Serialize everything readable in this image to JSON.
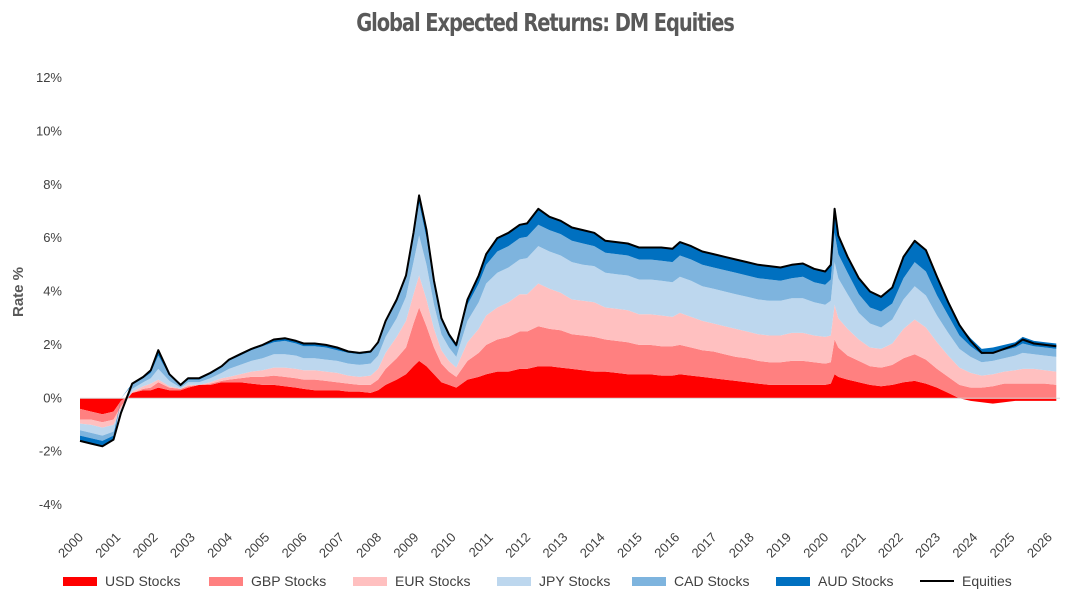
{
  "chart_data": {
    "type": "area",
    "title": "Global Expected Returns: DM Equities",
    "ylabel": "Rate %",
    "xlabel": "",
    "ylim": [
      -4,
      12
    ],
    "yticks": [
      -4,
      -2,
      0,
      2,
      4,
      6,
      8,
      10,
      12
    ],
    "ytick_labels": [
      "-4%",
      "-2%",
      "0%",
      "2%",
      "4%",
      "6%",
      "8%",
      "10%",
      "12%"
    ],
    "xlim": [
      2000,
      2026.3
    ],
    "xticks": [
      2000,
      2001,
      2002,
      2003,
      2004,
      2005,
      2006,
      2007,
      2008,
      2009,
      2010,
      2011,
      2012,
      2013,
      2014,
      2015,
      2016,
      2017,
      2018,
      2019,
      2020,
      2021,
      2022,
      2023,
      2024,
      2025,
      2026
    ],
    "xtick_labels": [
      "2000",
      "2001",
      "2002",
      "2003",
      "2004",
      "2005",
      "2006",
      "2007",
      "2008",
      "2009",
      "2010",
      "2011",
      "2012",
      "2013",
      "2014",
      "2015",
      "2016",
      "2017",
      "2018",
      "2019",
      "2020",
      "2021",
      "2022",
      "2023",
      "2024",
      "2025",
      "2026"
    ],
    "grid": false,
    "legend_position": "bottom",
    "x": [
      2000.0,
      2000.3,
      2000.6,
      2000.9,
      2001.1,
      2001.4,
      2001.7,
      2001.9,
      2002.1,
      2002.4,
      2002.7,
      2002.9,
      2003.2,
      2003.5,
      2003.8,
      2004.0,
      2004.3,
      2004.6,
      2004.9,
      2005.2,
      2005.5,
      2005.8,
      2006.0,
      2006.3,
      2006.6,
      2006.9,
      2007.2,
      2007.5,
      2007.8,
      2008.0,
      2008.2,
      2008.5,
      2008.75,
      2008.95,
      2009.1,
      2009.3,
      2009.5,
      2009.7,
      2009.9,
      2010.1,
      2010.4,
      2010.7,
      2010.9,
      2011.2,
      2011.5,
      2011.8,
      2012.0,
      2012.3,
      2012.6,
      2012.9,
      2013.2,
      2013.5,
      2013.8,
      2014.1,
      2014.4,
      2014.7,
      2015.0,
      2015.3,
      2015.6,
      2015.9,
      2016.1,
      2016.4,
      2016.7,
      2017.0,
      2017.3,
      2017.6,
      2017.9,
      2018.2,
      2018.5,
      2018.8,
      2019.1,
      2019.4,
      2019.7,
      2020.0,
      2020.15,
      2020.25,
      2020.35,
      2020.6,
      2020.9,
      2021.2,
      2021.5,
      2021.8,
      2022.1,
      2022.4,
      2022.7,
      2023.0,
      2023.3,
      2023.6,
      2023.9,
      2024.2,
      2024.5,
      2024.8,
      2025.1,
      2025.3,
      2025.6,
      2025.9,
      2026.2
    ],
    "series": [
      {
        "name": "USD Stocks",
        "color": "#ff0000",
        "values": [
          -0.4,
          -0.5,
          -0.6,
          -0.5,
          -0.1,
          0.2,
          0.3,
          0.3,
          0.4,
          0.3,
          0.3,
          0.4,
          0.5,
          0.5,
          0.6,
          0.6,
          0.6,
          0.55,
          0.5,
          0.5,
          0.45,
          0.4,
          0.35,
          0.3,
          0.3,
          0.3,
          0.25,
          0.25,
          0.2,
          0.3,
          0.5,
          0.7,
          0.9,
          1.2,
          1.4,
          1.2,
          0.9,
          0.6,
          0.5,
          0.4,
          0.7,
          0.8,
          0.9,
          1.0,
          1.0,
          1.1,
          1.1,
          1.2,
          1.2,
          1.15,
          1.1,
          1.05,
          1.0,
          1.0,
          0.95,
          0.9,
          0.9,
          0.9,
          0.85,
          0.85,
          0.9,
          0.85,
          0.8,
          0.75,
          0.7,
          0.65,
          0.6,
          0.55,
          0.5,
          0.5,
          0.5,
          0.5,
          0.5,
          0.5,
          0.55,
          0.9,
          0.8,
          0.7,
          0.6,
          0.5,
          0.45,
          0.5,
          0.6,
          0.65,
          0.55,
          0.4,
          0.2,
          0.0,
          -0.1,
          -0.15,
          -0.2,
          -0.15,
          -0.1,
          -0.1,
          -0.1,
          -0.1,
          -0.1
        ]
      },
      {
        "name": "GBP Stocks",
        "color": "#ff8080",
        "values": [
          -0.4,
          -0.3,
          -0.3,
          -0.3,
          -0.2,
          0.0,
          0.05,
          0.1,
          0.2,
          0.1,
          0.05,
          0.05,
          0.0,
          0.05,
          0.05,
          0.1,
          0.15,
          0.25,
          0.3,
          0.35,
          0.35,
          0.35,
          0.35,
          0.4,
          0.35,
          0.3,
          0.3,
          0.25,
          0.3,
          0.4,
          0.6,
          0.8,
          1.0,
          1.6,
          2.0,
          1.5,
          1.0,
          0.7,
          0.5,
          0.4,
          0.7,
          0.9,
          1.1,
          1.2,
          1.3,
          1.4,
          1.4,
          1.5,
          1.4,
          1.4,
          1.3,
          1.3,
          1.3,
          1.2,
          1.2,
          1.2,
          1.1,
          1.1,
          1.1,
          1.1,
          1.1,
          1.05,
          1.0,
          1.0,
          0.95,
          0.9,
          0.9,
          0.85,
          0.85,
          0.85,
          0.9,
          0.9,
          0.85,
          0.8,
          0.8,
          1.3,
          1.1,
          0.9,
          0.8,
          0.7,
          0.7,
          0.75,
          0.9,
          1.0,
          0.9,
          0.7,
          0.6,
          0.5,
          0.4,
          0.4,
          0.45,
          0.55,
          0.55,
          0.55,
          0.55,
          0.55,
          0.5
        ]
      },
      {
        "name": "EUR Stocks",
        "color": "#ffc0c0",
        "values": [
          -0.15,
          -0.2,
          -0.2,
          -0.2,
          -0.1,
          0.05,
          0.1,
          0.15,
          0.1,
          0.05,
          0.0,
          0.05,
          0.0,
          0.05,
          0.1,
          0.1,
          0.15,
          0.2,
          0.25,
          0.3,
          0.35,
          0.35,
          0.35,
          0.35,
          0.35,
          0.35,
          0.3,
          0.3,
          0.35,
          0.4,
          0.6,
          0.8,
          1.0,
          1.1,
          1.2,
          1.0,
          0.7,
          0.5,
          0.4,
          0.35,
          0.7,
          0.9,
          1.1,
          1.2,
          1.3,
          1.4,
          1.4,
          1.6,
          1.5,
          1.4,
          1.3,
          1.3,
          1.3,
          1.2,
          1.2,
          1.2,
          1.15,
          1.15,
          1.15,
          1.1,
          1.2,
          1.15,
          1.1,
          1.05,
          1.05,
          1.05,
          1.0,
          1.0,
          1.0,
          1.0,
          1.05,
          1.05,
          1.0,
          1.0,
          1.0,
          1.3,
          1.1,
          1.0,
          0.8,
          0.7,
          0.7,
          0.8,
          1.1,
          1.3,
          1.2,
          1.0,
          0.8,
          0.65,
          0.55,
          0.45,
          0.45,
          0.45,
          0.5,
          0.55,
          0.55,
          0.5,
          0.5
        ]
      },
      {
        "name": "JPY Stocks",
        "color": "#bdd7ee",
        "values": [
          -0.25,
          -0.3,
          -0.3,
          -0.25,
          -0.1,
          0.1,
          0.15,
          0.2,
          0.4,
          0.2,
          0.05,
          0.1,
          0.1,
          0.15,
          0.2,
          0.3,
          0.35,
          0.4,
          0.45,
          0.5,
          0.5,
          0.5,
          0.45,
          0.45,
          0.45,
          0.45,
          0.45,
          0.45,
          0.45,
          0.5,
          0.6,
          0.7,
          0.9,
          1.2,
          1.5,
          1.3,
          0.9,
          0.6,
          0.5,
          0.4,
          0.8,
          1.0,
          1.2,
          1.3,
          1.3,
          1.3,
          1.35,
          1.4,
          1.4,
          1.4,
          1.4,
          1.35,
          1.35,
          1.3,
          1.3,
          1.3,
          1.3,
          1.3,
          1.3,
          1.3,
          1.35,
          1.35,
          1.3,
          1.3,
          1.3,
          1.3,
          1.3,
          1.3,
          1.3,
          1.3,
          1.3,
          1.3,
          1.25,
          1.2,
          1.3,
          1.6,
          1.5,
          1.3,
          1.0,
          0.9,
          0.8,
          0.9,
          1.1,
          1.25,
          1.2,
          1.0,
          0.85,
          0.7,
          0.6,
          0.5,
          0.5,
          0.5,
          0.55,
          0.6,
          0.55,
          0.55,
          0.55
        ]
      },
      {
        "name": "CAD Stocks",
        "color": "#7eb4de",
        "values": [
          -0.2,
          -0.2,
          -0.2,
          -0.15,
          -0.05,
          0.15,
          0.15,
          0.2,
          0.5,
          0.2,
          0.05,
          0.1,
          0.1,
          0.15,
          0.2,
          0.3,
          0.35,
          0.4,
          0.45,
          0.45,
          0.5,
          0.45,
          0.45,
          0.45,
          0.45,
          0.4,
          0.4,
          0.4,
          0.4,
          0.45,
          0.55,
          0.6,
          0.7,
          0.9,
          1.2,
          1.0,
          0.7,
          0.5,
          0.4,
          0.35,
          0.6,
          0.7,
          0.7,
          0.8,
          0.8,
          0.8,
          0.8,
          0.8,
          0.8,
          0.8,
          0.8,
          0.8,
          0.75,
          0.75,
          0.75,
          0.75,
          0.75,
          0.75,
          0.75,
          0.75,
          0.8,
          0.8,
          0.8,
          0.8,
          0.8,
          0.8,
          0.8,
          0.8,
          0.8,
          0.75,
          0.75,
          0.8,
          0.75,
          0.75,
          0.8,
          1.1,
          0.9,
          0.8,
          0.7,
          0.6,
          0.6,
          0.6,
          0.8,
          0.9,
          0.9,
          0.75,
          0.65,
          0.5,
          0.4,
          0.3,
          0.3,
          0.3,
          0.3,
          0.35,
          0.3,
          0.3,
          0.3
        ]
      },
      {
        "name": "AUD Stocks",
        "color": "#0070c0",
        "values": [
          -0.2,
          -0.2,
          -0.2,
          -0.15,
          0.0,
          0.05,
          0.05,
          0.1,
          0.2,
          0.05,
          0.05,
          0.05,
          0.05,
          0.05,
          0.05,
          0.05,
          0.05,
          0.05,
          0.05,
          0.1,
          0.1,
          0.1,
          0.1,
          0.1,
          0.1,
          0.1,
          0.05,
          0.05,
          0.05,
          0.05,
          0.05,
          0.1,
          0.1,
          0.2,
          0.3,
          0.3,
          0.2,
          0.1,
          0.1,
          0.1,
          0.2,
          0.3,
          0.4,
          0.5,
          0.5,
          0.5,
          0.5,
          0.6,
          0.5,
          0.5,
          0.5,
          0.5,
          0.5,
          0.45,
          0.45,
          0.45,
          0.45,
          0.45,
          0.5,
          0.5,
          0.5,
          0.5,
          0.5,
          0.5,
          0.5,
          0.5,
          0.5,
          0.5,
          0.5,
          0.5,
          0.5,
          0.5,
          0.5,
          0.5,
          0.55,
          0.9,
          0.7,
          0.6,
          0.6,
          0.6,
          0.55,
          0.6,
          0.8,
          0.8,
          0.8,
          0.7,
          0.5,
          0.4,
          0.3,
          0.2,
          0.2,
          0.2,
          0.2,
          0.25,
          0.2,
          0.2,
          0.2
        ]
      }
    ],
    "line_series": {
      "name": "Equities",
      "color": "#000000"
    }
  }
}
